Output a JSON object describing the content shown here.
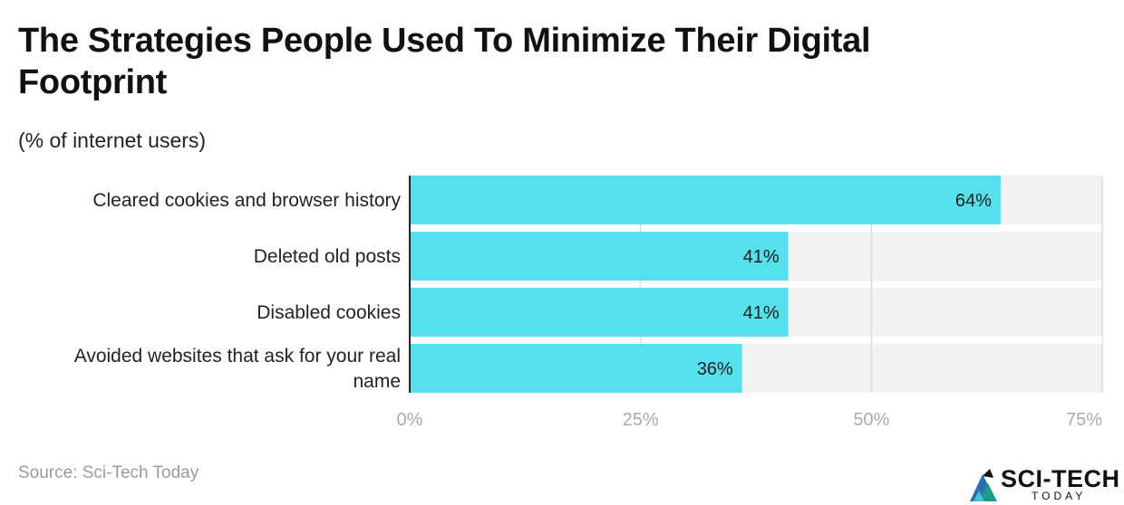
{
  "header": {
    "title": "The Strategies People Used To Minimize Their Digital Footprint",
    "subtitle": "(% of internet users)"
  },
  "footer": {
    "source": "Source: Sci-Tech Today",
    "logo_main": "SCI-TECH",
    "logo_sub": "TODAY"
  },
  "colors": {
    "bar": "#56E0EC",
    "track": "#F2F2F2",
    "grid": "#DCDCDC",
    "axis": "#222222",
    "tick": "#AAAAAA"
  },
  "chart_data": {
    "type": "bar",
    "orientation": "horizontal",
    "title": "The Strategies People Used To Minimize Their Digital Footprint",
    "subtitle": "(% of internet users)",
    "categories": [
      [
        "Cleared cookies and browser history"
      ],
      [
        "Deleted old posts"
      ],
      [
        "Disabled cookies"
      ],
      [
        "Avoided websites that ask for your real",
        "name"
      ]
    ],
    "values": [
      64,
      41,
      41,
      36
    ],
    "value_labels": [
      "64%",
      "41%",
      "41%",
      "36%"
    ],
    "xlim": [
      0,
      75
    ],
    "ticks": [
      0,
      25,
      50,
      75
    ],
    "tick_labels": [
      "0%",
      "25%",
      "50%",
      "75%"
    ],
    "grid": true,
    "xlabel": "",
    "ylabel": ""
  }
}
